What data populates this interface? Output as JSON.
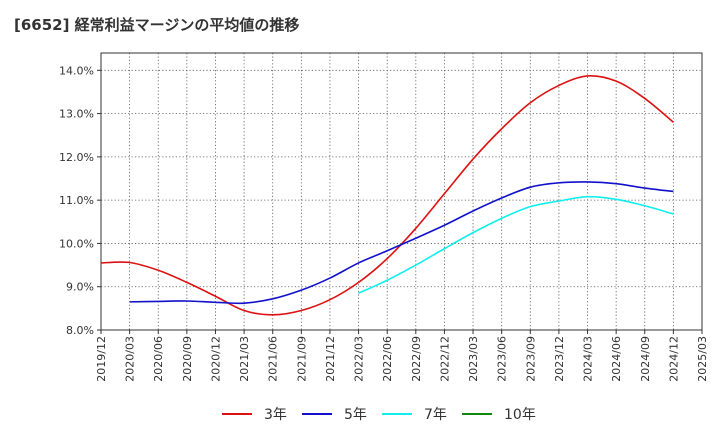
{
  "chart_data": {
    "type": "line",
    "title": "[6652]  経常利益マージンの平均値の推移",
    "xlabel": "",
    "ylabel": "",
    "categories": [
      "2019/12",
      "2020/03",
      "2020/06",
      "2020/09",
      "2020/12",
      "2021/03",
      "2021/06",
      "2021/09",
      "2021/12",
      "2022/03",
      "2022/06",
      "2022/09",
      "2022/12",
      "2023/03",
      "2023/06",
      "2023/09",
      "2023/12",
      "2024/03",
      "2024/06",
      "2024/09",
      "2024/12",
      "2025/03"
    ],
    "y_tick_labels": [
      "8.0%",
      "9.0%",
      "10.0%",
      "11.0%",
      "12.0%",
      "13.0%",
      "14.0%"
    ],
    "ylim": [
      8.0,
      14.4
    ],
    "grid": true,
    "legend_position": "bottom",
    "series": [
      {
        "name": "3年",
        "color": "#dd1111",
        "values": [
          9.55,
          9.56,
          9.38,
          9.1,
          8.78,
          8.45,
          8.35,
          8.45,
          8.7,
          9.1,
          9.65,
          10.35,
          11.15,
          11.95,
          12.65,
          13.25,
          13.65,
          13.87,
          13.75,
          13.35,
          12.8,
          null
        ]
      },
      {
        "name": "5年",
        "color": "#1111cc",
        "values": [
          null,
          8.65,
          8.66,
          8.67,
          8.64,
          8.62,
          8.72,
          8.92,
          9.2,
          9.55,
          9.83,
          10.12,
          10.42,
          10.75,
          11.05,
          11.3,
          11.4,
          11.42,
          11.38,
          11.28,
          11.2,
          null
        ]
      },
      {
        "name": "7年",
        "color": "#11eeee",
        "values": [
          null,
          null,
          null,
          null,
          null,
          null,
          null,
          null,
          null,
          8.85,
          9.15,
          9.5,
          9.88,
          10.25,
          10.58,
          10.85,
          10.98,
          11.08,
          11.02,
          10.87,
          10.68,
          null
        ]
      },
      {
        "name": "10年",
        "color": "#118811",
        "values": [
          null,
          null,
          null,
          null,
          null,
          null,
          null,
          null,
          null,
          null,
          null,
          null,
          null,
          null,
          null,
          null,
          null,
          null,
          null,
          null,
          null,
          null
        ]
      }
    ]
  }
}
